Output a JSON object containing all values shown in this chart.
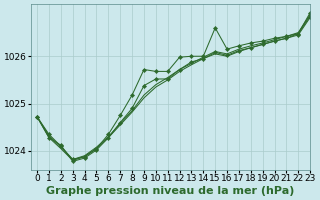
{
  "background_color": "#cce8ec",
  "grid_color": "#aacccc",
  "line_color": "#2d6a2d",
  "xlabel": "Graphe pression niveau de la mer (hPa)",
  "ylim": [
    1023.6,
    1027.1
  ],
  "xlim": [
    -0.5,
    23
  ],
  "yticks": [
    1024,
    1025,
    1026
  ],
  "xticks": [
    0,
    1,
    2,
    3,
    4,
    5,
    6,
    7,
    8,
    9,
    10,
    11,
    12,
    13,
    14,
    15,
    16,
    17,
    18,
    19,
    20,
    21,
    22,
    23
  ],
  "series_markers": [
    [
      1024.72,
      1024.35,
      1024.1,
      1023.82,
      1023.88,
      1024.05,
      1024.35,
      1024.75,
      1025.18,
      1025.72,
      1025.68,
      1025.68,
      1025.98,
      1026.0,
      1026.0,
      1026.6,
      1026.15,
      1026.22,
      1026.28,
      1026.32,
      1026.38,
      1026.42,
      1026.48,
      1026.92
    ],
    [
      1024.72,
      1024.28,
      1024.12,
      1023.78,
      1023.85,
      1024.02,
      1024.28,
      1024.6,
      1024.9,
      1025.38,
      1025.52,
      1025.52,
      1025.72,
      1025.88,
      1025.95,
      1026.08,
      1026.02,
      1026.12,
      1026.18,
      1026.25,
      1026.32,
      1026.38,
      1026.45,
      1026.82
    ]
  ],
  "series_lines": [
    [
      1024.72,
      1024.32,
      1024.08,
      1023.82,
      1023.9,
      1024.08,
      1024.3,
      1024.58,
      1024.85,
      1025.18,
      1025.4,
      1025.55,
      1025.72,
      1025.85,
      1025.98,
      1026.1,
      1026.05,
      1026.15,
      1026.22,
      1026.28,
      1026.35,
      1026.42,
      1026.5,
      1026.88
    ],
    [
      1024.72,
      1024.28,
      1024.05,
      1023.8,
      1023.88,
      1024.05,
      1024.28,
      1024.55,
      1024.82,
      1025.12,
      1025.35,
      1025.5,
      1025.68,
      1025.82,
      1025.95,
      1026.05,
      1026.0,
      1026.1,
      1026.18,
      1026.25,
      1026.32,
      1026.38,
      1026.48,
      1026.85
    ]
  ],
  "title_fontsize": 8,
  "tick_fontsize": 6.5
}
